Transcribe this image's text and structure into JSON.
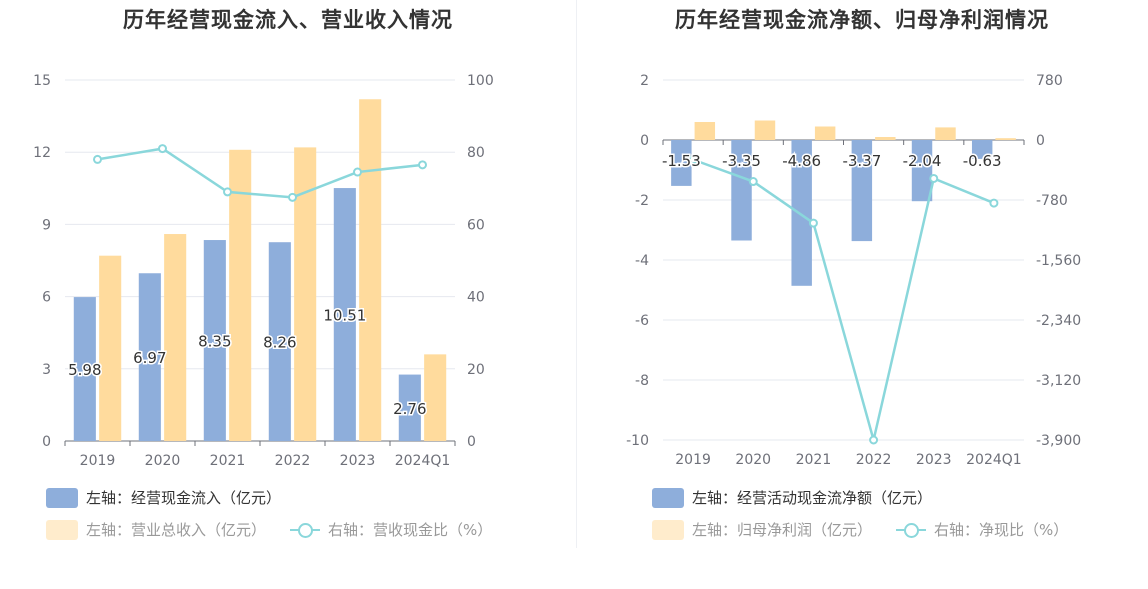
{
  "colors": {
    "blue": "#8eaedb",
    "orange": "#ffdb9d",
    "line": "#8ad7db",
    "grid": "#e6e8ef",
    "text": "#6e7079"
  },
  "left": {
    "title": "历年经营现金流入、营业收入情况",
    "legend": {
      "bar1": "左轴：经营现金流入（亿元）",
      "bar2": "左轴：营业总收入（亿元）",
      "line": "右轴：营收现金比（%）"
    }
  },
  "right": {
    "title": "历年经营现金流净额、归母净利润情况",
    "legend": {
      "bar1": "左轴：经营活动现金流净额（亿元）",
      "bar2": "左轴：归母净利润（亿元）",
      "line": "右轴：净现比（%）"
    }
  },
  "chart_data": [
    {
      "type": "bar",
      "title": "历年经营现金流入、营业收入情况",
      "categories": [
        "2019",
        "2020",
        "2021",
        "2022",
        "2023",
        "2024Q1"
      ],
      "left_axis": {
        "ticks": [
          "0",
          "3",
          "6",
          "9",
          "12",
          "15"
        ],
        "ylim": [
          0,
          15
        ]
      },
      "right_axis": {
        "ticks": [
          "0",
          "20",
          "40",
          "60",
          "80",
          "100"
        ],
        "ylim": [
          0,
          100
        ]
      },
      "series": [
        {
          "name": "经营现金流入",
          "axis": "left",
          "kind": "bar",
          "values": [
            5.98,
            6.97,
            8.35,
            8.26,
            10.51,
            2.76
          ],
          "labels": [
            "5.98",
            "6.97",
            "8.35",
            "8.26",
            "10.51",
            "2.76"
          ]
        },
        {
          "name": "营业总收入",
          "axis": "left",
          "kind": "bar",
          "values": [
            7.7,
            8.6,
            12.1,
            12.2,
            14.2,
            3.6
          ]
        },
        {
          "name": "营收现金比",
          "axis": "right",
          "kind": "line",
          "values": [
            78,
            81,
            69,
            67.5,
            74.5,
            76.5
          ]
        }
      ]
    },
    {
      "type": "bar",
      "title": "历年经营现金流净额、归母净利润情况",
      "categories": [
        "2019",
        "2020",
        "2021",
        "2022",
        "2023",
        "2024Q1"
      ],
      "left_axis": {
        "ticks": [
          "-10",
          "-8",
          "-6",
          "-4",
          "-2",
          "0",
          "2"
        ],
        "ylim": [
          -10,
          2
        ]
      },
      "right_axis": {
        "ticks": [
          "-3,900",
          "-3,120",
          "-2,340",
          "-1,560",
          "-780",
          "0",
          "780"
        ],
        "ylim": [
          -3900,
          780
        ]
      },
      "series": [
        {
          "name": "经营活动现金流净额",
          "axis": "left",
          "kind": "bar",
          "values": [
            -1.53,
            -3.35,
            -4.86,
            -3.37,
            -2.04,
            -0.63
          ],
          "labels": [
            "-1.53",
            "-3.35",
            "-4.86",
            "-3.37",
            "-2.04",
            "-0.63"
          ]
        },
        {
          "name": "归母净利润",
          "axis": "left",
          "kind": "bar",
          "values": [
            0.6,
            0.65,
            0.45,
            0.1,
            0.42,
            0.06
          ]
        },
        {
          "name": "净现比",
          "axis": "right",
          "kind": "line",
          "values": [
            -255,
            -540,
            -1080,
            -3900,
            -500,
            -820
          ]
        }
      ]
    }
  ]
}
